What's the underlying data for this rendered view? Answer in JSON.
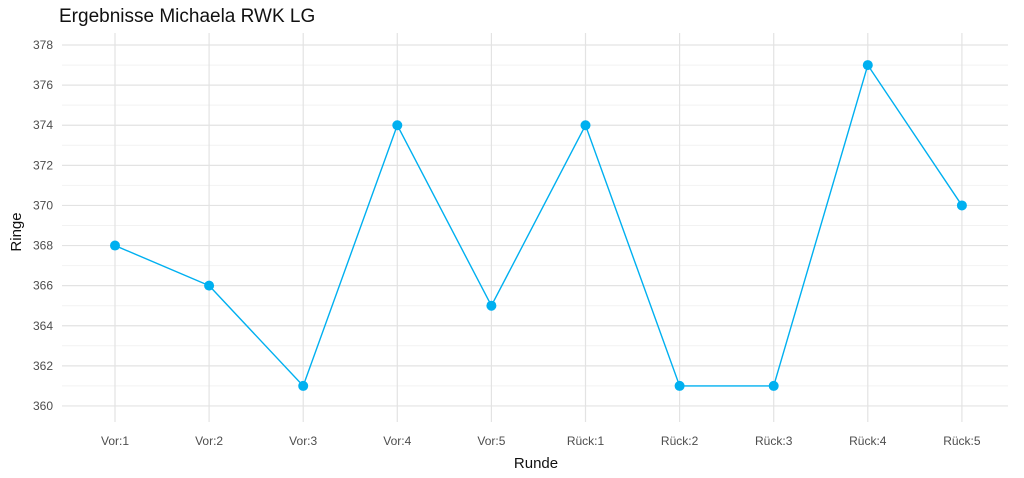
{
  "chart_data": {
    "type": "line",
    "title": "Ergebnisse Michaela RWK LG",
    "xlabel": "Runde",
    "ylabel": "Ringe",
    "categories": [
      "Vor:1",
      "Vor:2",
      "Vor:3",
      "Vor:4",
      "Vor:5",
      "Rück:1",
      "Rück:2",
      "Rück:3",
      "Rück:4",
      "Rück:5"
    ],
    "series": [
      {
        "values": [
          368,
          366,
          361,
          374,
          365,
          374,
          361,
          361,
          377,
          370
        ]
      }
    ],
    "ylim": [
      359.2,
      378.6
    ],
    "yticks": [
      360,
      362,
      364,
      366,
      368,
      370,
      372,
      374,
      376,
      378
    ],
    "grid": true,
    "color": "#00B0F0"
  }
}
